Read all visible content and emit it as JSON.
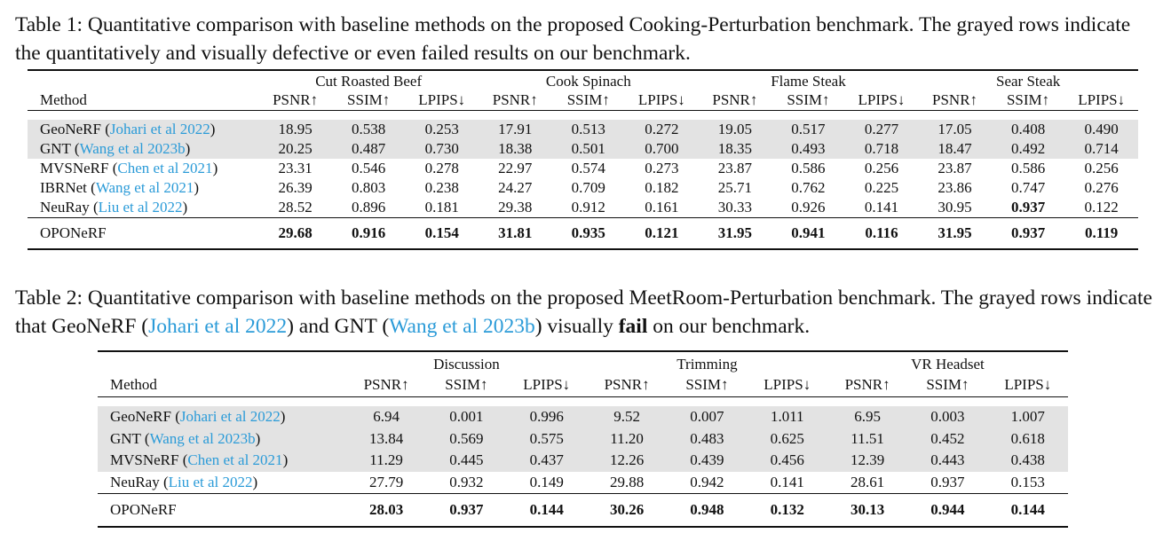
{
  "table1": {
    "caption": [
      {
        "text": "Table 1: Quantitative comparison with baseline methods on the proposed Cooking-Perturbation benchmark. The grayed rows indicate the quantitatively and visually defective or even failed results on our benchmark.",
        "cite": false
      }
    ],
    "method_header": "Method",
    "groups": [
      "Cut Roasted Beef",
      "Cook Spinach",
      "Flame Steak",
      "Sear Steak"
    ],
    "metrics": [
      "PSNR↑",
      "SSIM↑",
      "LPIPS↓"
    ],
    "rows": [
      {
        "name": "GeoNeRF",
        "open": " (",
        "cite": "Johari et al 2022",
        "close": ")",
        "gray": true,
        "values": [
          "18.95",
          "0.538",
          "0.253",
          "17.91",
          "0.513",
          "0.272",
          "19.05",
          "0.517",
          "0.277",
          "17.05",
          "0.408",
          "0.490"
        ],
        "bold": []
      },
      {
        "name": "GNT",
        "open": " (",
        "cite": "Wang et al 2023b",
        "close": ")",
        "gray": true,
        "values": [
          "20.25",
          "0.487",
          "0.730",
          "18.38",
          "0.501",
          "0.700",
          "18.35",
          "0.493",
          "0.718",
          "18.47",
          "0.492",
          "0.714"
        ],
        "bold": []
      },
      {
        "name": "MVSNeRF",
        "open": " (",
        "cite": "Chen et al 2021",
        "close": ")",
        "gray": false,
        "values": [
          "23.31",
          "0.546",
          "0.278",
          "22.97",
          "0.574",
          "0.273",
          "23.87",
          "0.586",
          "0.256",
          "23.87",
          "0.586",
          "0.256"
        ],
        "bold": []
      },
      {
        "name": "IBRNet",
        "open": " (",
        "cite": "Wang et al 2021",
        "close": ")",
        "gray": false,
        "values": [
          "26.39",
          "0.803",
          "0.238",
          "24.27",
          "0.709",
          "0.182",
          "25.71",
          "0.762",
          "0.225",
          "23.86",
          "0.747",
          "0.276"
        ],
        "bold": []
      },
      {
        "name": "NeuRay",
        "open": " (",
        "cite": "Liu et al 2022",
        "close": ")",
        "gray": false,
        "values": [
          "28.52",
          "0.896",
          "0.181",
          "29.38",
          "0.912",
          "0.161",
          "30.33",
          "0.926",
          "0.141",
          "30.95",
          "0.937",
          "0.122"
        ],
        "bold": [
          10
        ]
      }
    ],
    "ours": {
      "name": "OPONeRF",
      "values": [
        "29.68",
        "0.916",
        "0.154",
        "31.81",
        "0.935",
        "0.121",
        "31.95",
        "0.941",
        "0.116",
        "31.95",
        "0.937",
        "0.119"
      ]
    }
  },
  "table2": {
    "caption_parts": [
      {
        "text": "Table 2: Quantitative comparison with baseline methods on the proposed MeetRoom-Perturbation benchmark. The grayed rows indicate that GeoNeRF (",
        "style": "plain"
      },
      {
        "text": "Johari et al 2022",
        "style": "cite"
      },
      {
        "text": ") and GNT (",
        "style": "plain"
      },
      {
        "text": "Wang et al 2023b",
        "style": "cite"
      },
      {
        "text": ") visually ",
        "style": "plain"
      },
      {
        "text": "fail",
        "style": "bold"
      },
      {
        "text": " on our benchmark.",
        "style": "plain"
      }
    ],
    "method_header": "Method",
    "groups": [
      "Discussion",
      "Trimming",
      "VR Headset"
    ],
    "metrics": [
      "PSNR↑",
      "SSIM↑",
      "LPIPS↓"
    ],
    "rows": [
      {
        "name": "GeoNeRF",
        "open": " (",
        "cite": "Johari et al 2022",
        "close": ")",
        "gray": true,
        "values": [
          "6.94",
          "0.001",
          "0.996",
          "9.52",
          "0.007",
          "1.011",
          "6.95",
          "0.003",
          "1.007"
        ]
      },
      {
        "name": "GNT",
        "open": " (",
        "cite": "Wang et al 2023b",
        "close": ")",
        "gray": true,
        "values": [
          "13.84",
          "0.569",
          "0.575",
          "11.20",
          "0.483",
          "0.625",
          "11.51",
          "0.452",
          "0.618"
        ]
      },
      {
        "name": "MVSNeRF",
        "open": " (",
        "cite": "Chen et al 2021",
        "close": ")",
        "gray": true,
        "values": [
          "11.29",
          "0.445",
          "0.437",
          "12.26",
          "0.439",
          "0.456",
          "12.39",
          "0.443",
          "0.438"
        ]
      },
      {
        "name": "NeuRay",
        "open": " (",
        "cite": "Liu et al 2022",
        "close": ")",
        "gray": false,
        "values": [
          "27.79",
          "0.932",
          "0.149",
          "29.88",
          "0.942",
          "0.141",
          "28.61",
          "0.937",
          "0.153"
        ]
      }
    ],
    "ours": {
      "name": "OPONeRF",
      "values": [
        "28.03",
        "0.937",
        "0.144",
        "30.26",
        "0.948",
        "0.132",
        "30.13",
        "0.944",
        "0.144"
      ]
    }
  }
}
